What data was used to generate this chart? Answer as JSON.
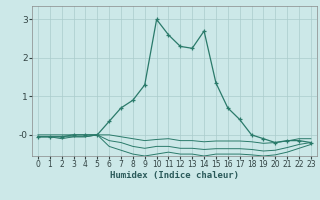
{
  "xlabel": "Humidex (Indice chaleur)",
  "background_color": "#cce8e8",
  "grid_color": "#aacccc",
  "line_color": "#2a7a6a",
  "x_ticks": [
    0,
    1,
    2,
    3,
    4,
    5,
    6,
    7,
    8,
    9,
    10,
    11,
    12,
    13,
    14,
    15,
    16,
    17,
    18,
    19,
    20,
    21,
    22,
    23
  ],
  "y_ticks": [
    0,
    1,
    2,
    3
  ],
  "ylim": [
    -0.55,
    3.35
  ],
  "xlim": [
    -0.5,
    23.5
  ],
  "line1_y": [
    -0.05,
    -0.05,
    -0.1,
    -0.05,
    -0.05,
    -0.0,
    -0.3,
    -0.4,
    -0.5,
    -0.55,
    -0.5,
    -0.45,
    -0.5,
    -0.5,
    -0.55,
    -0.5,
    -0.5,
    -0.5,
    -0.52,
    -0.55,
    -0.52,
    -0.45,
    -0.35,
    -0.25
  ],
  "line2_y": [
    -0.05,
    -0.05,
    -0.05,
    -0.05,
    -0.05,
    0.0,
    -0.15,
    -0.2,
    -0.3,
    -0.35,
    -0.3,
    -0.3,
    -0.35,
    -0.35,
    -0.38,
    -0.36,
    -0.36,
    -0.36,
    -0.38,
    -0.42,
    -0.4,
    -0.33,
    -0.25,
    -0.2
  ],
  "line3_y": [
    0.0,
    0.0,
    0.0,
    0.0,
    0.0,
    0.0,
    0.0,
    -0.05,
    -0.1,
    -0.15,
    -0.12,
    -0.1,
    -0.15,
    -0.15,
    -0.18,
    -0.16,
    -0.16,
    -0.16,
    -0.18,
    -0.22,
    -0.2,
    -0.16,
    -0.1,
    -0.1
  ],
  "main_y": [
    -0.05,
    -0.05,
    -0.05,
    -0.0,
    -0.0,
    0.0,
    0.35,
    0.7,
    0.9,
    1.3,
    3.0,
    2.6,
    2.3,
    2.25,
    2.7,
    1.35,
    0.7,
    0.4,
    -0.0,
    -0.1,
    -0.2,
    -0.15,
    -0.15,
    -0.2
  ]
}
